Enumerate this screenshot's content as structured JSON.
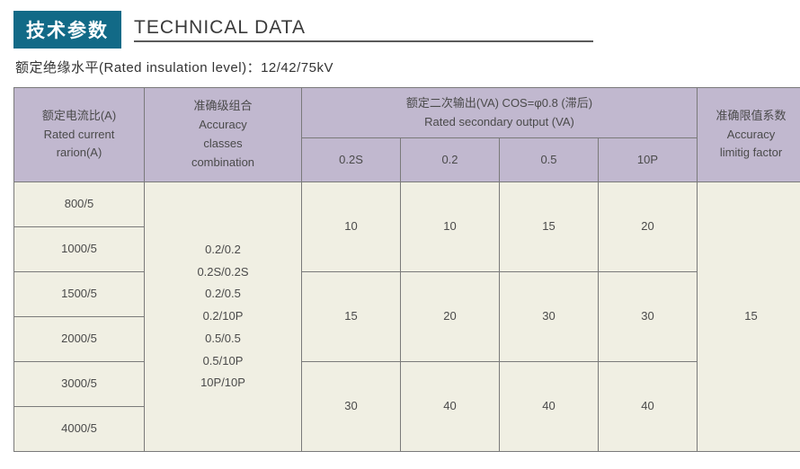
{
  "colors": {
    "badge_bg": "#126a87",
    "title_text": "#3a3a3a",
    "title_underline": "#5a5a5a",
    "border": "#7a7a7a",
    "header_bg": "#c1b8cf",
    "body_bg": "#f0efe3",
    "body_text": "#4a4a4a"
  },
  "title": {
    "badge": "技术参数",
    "en": "TECHNICAL DATA"
  },
  "subtitle": "额定绝缘水平(Rated insulation level)：12/42/75kV",
  "headers": {
    "ratio_cn": "额定电流比(A)",
    "ratio_en1": "Rated current",
    "ratio_en2": "rarion(A)",
    "acc_cn": "准确级组合",
    "acc_en1": "Accuracy",
    "acc_en2": "classes",
    "acc_en3": "combination",
    "output_cn": "额定二次输出(VA) COS=φ0.8 (滞后)",
    "output_en": "Rated secondary output (VA)",
    "sub1": "0.2S",
    "sub2": "0.2",
    "sub3": "0.5",
    "sub4": "10P",
    "factor_cn": "准确限值系数",
    "factor_en1": "Accuracy",
    "factor_en2": "limitig factor"
  },
  "ratios": [
    "800/5",
    "1000/5",
    "1500/5",
    "2000/5",
    "3000/5",
    "4000/5"
  ],
  "accuracy_list": [
    "0.2/0.2",
    "0.2S/0.2S",
    "0.2/0.5",
    "0.2/10P",
    "0.5/0.5",
    "0.5/10P",
    "10P/10P"
  ],
  "output_rows": [
    {
      "v1": "10",
      "v2": "10",
      "v3": "15",
      "v4": "20"
    },
    {
      "v1": "15",
      "v2": "20",
      "v3": "30",
      "v4": "30"
    },
    {
      "v1": "30",
      "v2": "40",
      "v3": "40",
      "v4": "40"
    }
  ],
  "factor": "15"
}
